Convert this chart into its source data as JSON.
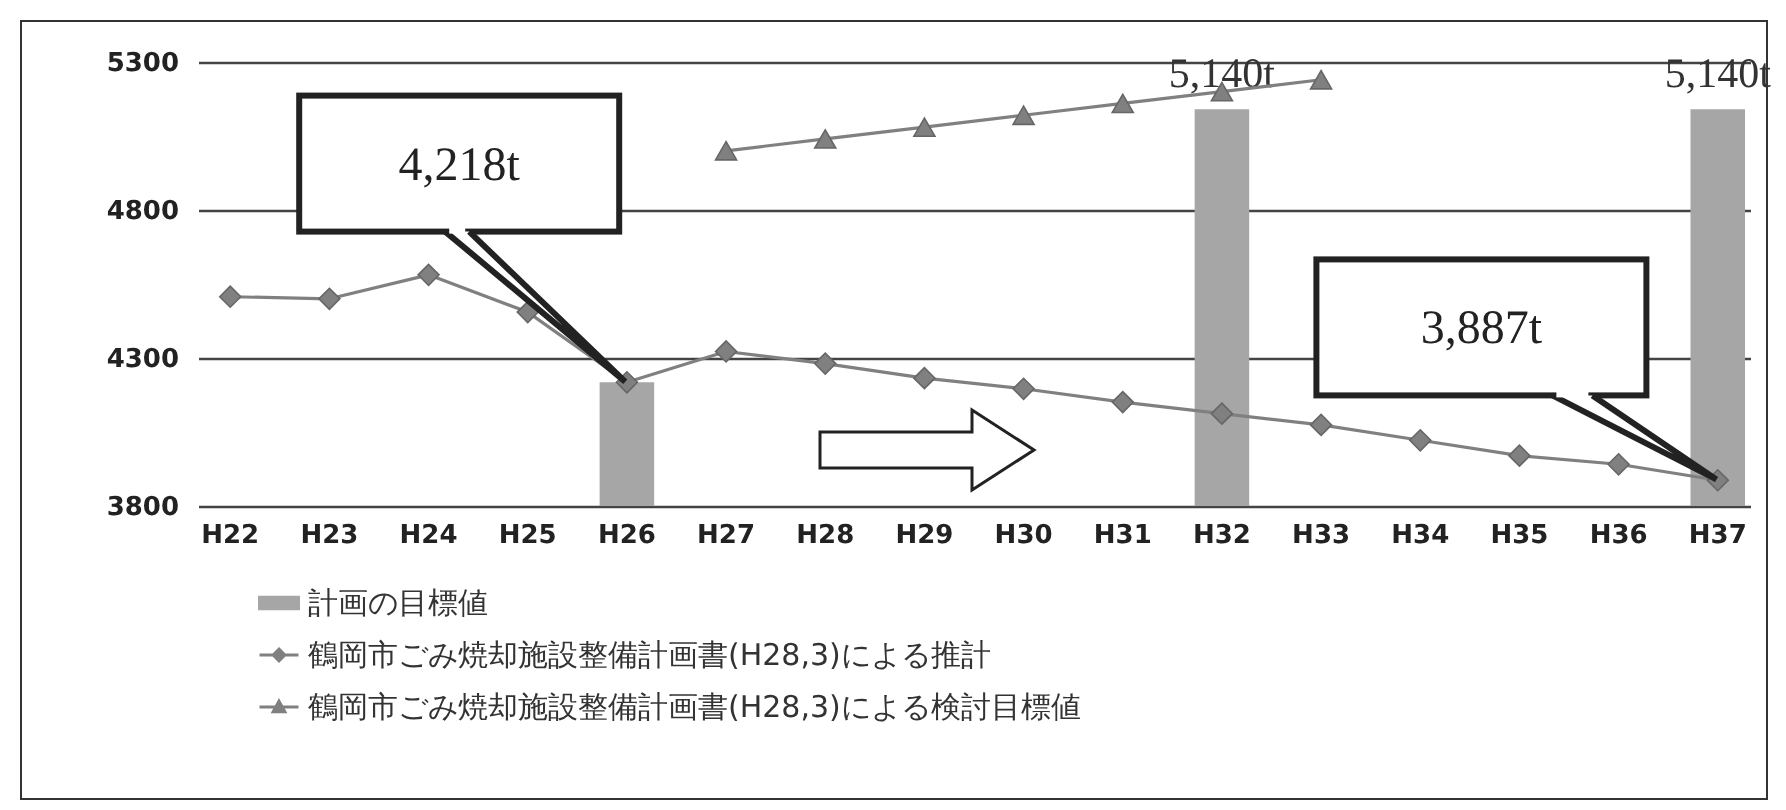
{
  "chart_data": {
    "type": "line",
    "categories": [
      "H22",
      "H23",
      "H24",
      "H25",
      "H26",
      "H27",
      "H28",
      "H29",
      "H30",
      "H31",
      "H32",
      "H33",
      "H34",
      "H35",
      "H36",
      "H37"
    ],
    "series": [
      {
        "type": "bar",
        "name": "計画の目標値",
        "color": "#a6a6a6",
        "values": [
          null,
          null,
          null,
          null,
          4218,
          null,
          null,
          null,
          null,
          null,
          5140,
          null,
          null,
          null,
          null,
          5140
        ],
        "value_labels": [
          null,
          null,
          null,
          null,
          null,
          null,
          null,
          null,
          null,
          null,
          "5,140t",
          null,
          null,
          null,
          null,
          "5,140t"
        ]
      },
      {
        "name": "鶴岡市ごみ焼却施設整備計画書(H28,3)による推計",
        "color": "#808080",
        "marker": "diamond",
        "values": [
          4507,
          4500,
          4581,
          4455,
          4218,
          4322,
          4281,
          4232,
          4196,
          4151,
          4112,
          4074,
          4022,
          3970,
          3941,
          3887
        ]
      },
      {
        "name": "鶴岡市ごみ焼却施設整備計画書(H28,3)による検討目標値",
        "color": "#808080",
        "marker": "triangle",
        "values": [
          null,
          null,
          null,
          null,
          null,
          5000,
          5040,
          5080,
          5120,
          5160,
          5200,
          5240,
          null,
          null,
          null,
          null
        ]
      }
    ],
    "annotations": [
      "4,218t",
      "3,887t"
    ],
    "ylim": [
      3800,
      5300
    ],
    "yticks": [
      3800,
      4300,
      4800,
      5300
    ],
    "grid": "y",
    "legend": "bottom"
  }
}
